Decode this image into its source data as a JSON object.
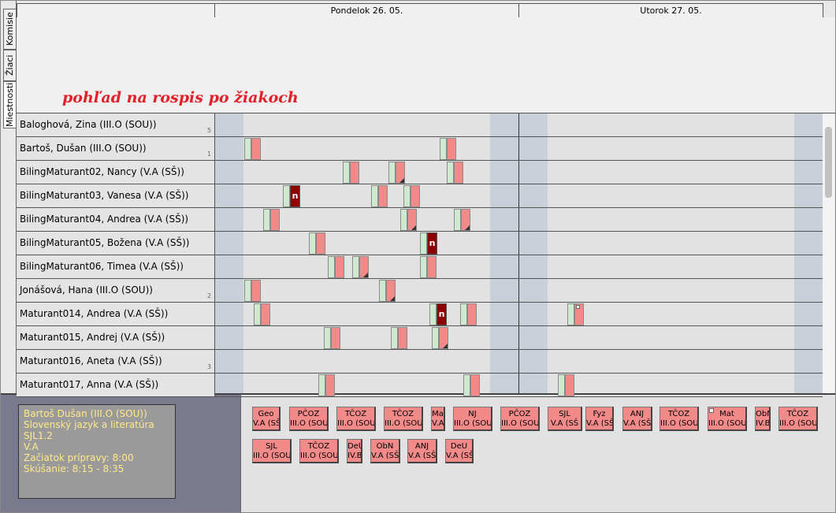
{
  "tabs": [
    "Miestnosti",
    "Žiaci",
    "Komisie"
  ],
  "columns": [
    "Pondelok 26. 05.",
    "Utorok 27. 05."
  ],
  "annotation": "pohľad na rospis po žiakoch",
  "mark_label": "n",
  "students": [
    {
      "name": "Baloghová, Zina (III.O (SOU))",
      "count": "5"
    },
    {
      "name": "Bartoš, Dušan (III.O (SOU))",
      "count": "1"
    },
    {
      "name": "BilingMaturant02, Nancy (V.A (SŠ))"
    },
    {
      "name": "BilingMaturant03, Vanesa (V.A (SŠ))"
    },
    {
      "name": "BilingMaturant04, Andrea (V.A (SŠ))"
    },
    {
      "name": "BilingMaturant05, Božena (V.A (SŠ))"
    },
    {
      "name": "BilingMaturant06, Timea (V.A (SŠ))"
    },
    {
      "name": "Jonášová, Hana (III.O (SOU))",
      "count": "2"
    },
    {
      "name": "Maturant014, Andrea (V.A (SŠ))"
    },
    {
      "name": "Maturant015, Andrej (V.A (SŠ))"
    },
    {
      "name": "Maturant016, Aneta (V.A (SŠ))",
      "count": "3"
    },
    {
      "name": "Maturant017, Anna (V.A (SŠ))"
    }
  ],
  "info": [
    "Bartoš Dušan (III.O (SOU))",
    "Slovenský jazyk a literatúra",
    "SJL1.2",
    "V.A",
    "Začiatok prípravy: 8:00",
    "Skúšanie: 8:15 - 8:35"
  ],
  "cards": [
    {
      "subject": "Geo",
      "class": "V.A (SŠ"
    },
    {
      "subject": "PČOZ",
      "class": "III.O (SOU"
    },
    {
      "subject": "TČOZ",
      "class": "III.O (SOU"
    },
    {
      "subject": "TČOZ",
      "class": "III.O (SOU"
    },
    {
      "subject": "Ma",
      "class": "V.A"
    },
    {
      "subject": "NJ",
      "class": "III.O (SOU"
    },
    {
      "subject": "PČOZ",
      "class": "III.O (SOU"
    },
    {
      "subject": "SJL",
      "class": "V.A (SŠ"
    },
    {
      "subject": "Fyz",
      "class": "V.A (SŠ"
    },
    {
      "subject": "ANJ",
      "class": "V.A (SŠ"
    },
    {
      "subject": "TČOZ",
      "class": "III.O (SOU"
    },
    {
      "subject": "Mat",
      "class": "III.O (SOU"
    },
    {
      "subject": "ObN",
      "class": "IV.B"
    },
    {
      "subject": "TČOZ",
      "class": "III.O (SOU"
    },
    {
      "subject": "SJL",
      "class": "III.O (SOU"
    },
    {
      "subject": "TČOZ",
      "class": "III.O (SOU"
    },
    {
      "subject": "DeU",
      "class": "IV.B"
    },
    {
      "subject": "ObN",
      "class": "V.A (SŠ"
    },
    {
      "subject": "ANJ",
      "class": "V.A (SŠ"
    },
    {
      "subject": "DeU",
      "class": "V.A (SŠ"
    }
  ]
}
